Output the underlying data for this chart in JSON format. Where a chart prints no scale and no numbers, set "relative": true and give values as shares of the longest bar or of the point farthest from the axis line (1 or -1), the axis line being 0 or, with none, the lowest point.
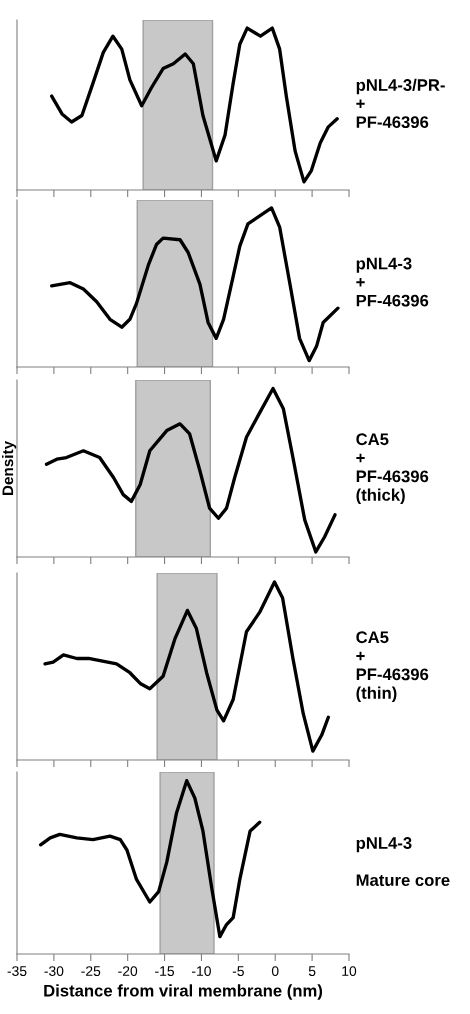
{
  "chart_data": [
    {
      "type": "line",
      "relative": true,
      "xlim": [
        -35,
        10
      ],
      "xticks": [
        -35,
        -30,
        -25,
        -20,
        -15,
        -10,
        -5,
        0,
        5,
        10
      ],
      "tick_labels": false,
      "x": [
        -30.3,
        -28.9,
        -27.6,
        -26.2,
        -24.7,
        -23.3,
        -22.0,
        -20.8,
        -19.7,
        -18.1,
        -16.8,
        -15.2,
        -13.8,
        -12.2,
        -11.1,
        -9.8,
        -8.0,
        -6.8,
        -5.7,
        -4.8,
        -3.8,
        -2.0,
        -0.4,
        0.6,
        1.5,
        2.7,
        3.9,
        4.9,
        6.1,
        7.2,
        8.4
      ],
      "series": [
        {
          "color": "#000000",
          "values": [
            0.58,
            0.47,
            0.42,
            0.46,
            0.66,
            0.85,
            0.95,
            0.87,
            0.68,
            0.52,
            0.63,
            0.75,
            0.78,
            0.84,
            0.78,
            0.46,
            0.18,
            0.34,
            0.66,
            0.9,
            1.0,
            0.95,
            1.0,
            0.87,
            0.58,
            0.24,
            0.05,
            0.12,
            0.29,
            0.39,
            0.44
          ]
        }
      ],
      "bands": [
        {
          "axis": "x",
          "from": -17.9,
          "to": -8.5,
          "color": "#c8c8c8"
        }
      ],
      "annotations": [
        "pNL4-3/PR-\n+\nPF-46396"
      ]
    },
    {
      "type": "line",
      "relative": true,
      "xlim": [
        -35,
        10
      ],
      "xticks": [
        -35,
        -30,
        -25,
        -20,
        -15,
        -10,
        -5,
        0,
        5,
        10
      ],
      "tick_labels": false,
      "x": [
        -30.3,
        -27.8,
        -26.0,
        -24.2,
        -22.4,
        -20.8,
        -19.7,
        -18.8,
        -17.2,
        -16.1,
        -15.2,
        -12.9,
        -11.8,
        -10.2,
        -9.1,
        -8.0,
        -7.0,
        -5.7,
        -4.8,
        -3.7,
        -2.1,
        -0.5,
        0.6,
        2.0,
        3.3,
        4.6,
        5.6,
        6.5,
        8.5
      ],
      "series": [
        {
          "color": "#000000",
          "values": [
            0.51,
            0.53,
            0.49,
            0.41,
            0.3,
            0.25,
            0.3,
            0.4,
            0.64,
            0.77,
            0.81,
            0.8,
            0.72,
            0.52,
            0.28,
            0.18,
            0.3,
            0.57,
            0.76,
            0.9,
            0.95,
            1.0,
            0.88,
            0.52,
            0.18,
            0.04,
            0.13,
            0.28,
            0.37
          ]
        }
      ],
      "bands": [
        {
          "axis": "x",
          "from": -18.7,
          "to": -8.5,
          "color": "#c8c8c8"
        }
      ],
      "annotations": [
        "pNL4-3\n+\nPF-46396"
      ]
    },
    {
      "type": "line",
      "relative": true,
      "ylabel": "Density",
      "xlim": [
        -35,
        10
      ],
      "xticks": [
        -35,
        -30,
        -25,
        -20,
        -15,
        -10,
        -5,
        0,
        5,
        10
      ],
      "tick_labels": false,
      "x": [
        -31.0,
        -29.6,
        -28.3,
        -26.0,
        -23.8,
        -21.9,
        -20.6,
        -19.5,
        -18.3,
        -17.0,
        -14.7,
        -12.9,
        -11.6,
        -10.2,
        -8.9,
        -7.7,
        -6.6,
        -5.5,
        -3.9,
        -2.3,
        -0.3,
        1.1,
        2.4,
        4.0,
        5.5,
        6.7,
        8.1
      ],
      "series": [
        {
          "color": "#000000",
          "values": [
            0.55,
            0.58,
            0.59,
            0.63,
            0.59,
            0.47,
            0.37,
            0.33,
            0.43,
            0.63,
            0.75,
            0.79,
            0.73,
            0.51,
            0.29,
            0.23,
            0.29,
            0.47,
            0.71,
            0.84,
            1.0,
            0.88,
            0.59,
            0.22,
            0.03,
            0.12,
            0.25
          ]
        }
      ],
      "bands": [
        {
          "axis": "x",
          "from": -18.9,
          "to": -8.8,
          "color": "#c8c8c8"
        }
      ],
      "annotations": [
        "CA5\n+\nPF-46396\n(thick)"
      ]
    },
    {
      "type": "line",
      "relative": true,
      "xlim": [
        -35,
        10
      ],
      "xticks": [
        -35,
        -30,
        -25,
        -20,
        -15,
        -10,
        -5,
        0,
        5,
        10
      ],
      "tick_labels": false,
      "x": [
        -31.2,
        -30.1,
        -28.7,
        -26.9,
        -25.3,
        -21.5,
        -19.7,
        -18.3,
        -17.0,
        -15.2,
        -13.6,
        -11.9,
        -10.7,
        -9.3,
        -7.9,
        -7.0,
        -5.7,
        -3.9,
        -2.1,
        -0.1,
        1.0,
        2.4,
        3.8,
        5.1,
        6.3,
        7.2
      ],
      "series": [
        {
          "color": "#000000",
          "values": [
            0.54,
            0.55,
            0.59,
            0.57,
            0.57,
            0.54,
            0.49,
            0.43,
            0.4,
            0.47,
            0.68,
            0.84,
            0.74,
            0.49,
            0.28,
            0.22,
            0.34,
            0.72,
            0.83,
            1.0,
            0.91,
            0.57,
            0.26,
            0.05,
            0.14,
            0.24
          ]
        }
      ],
      "bands": [
        {
          "axis": "x",
          "from": -16.0,
          "to": -7.9,
          "color": "#c8c8c8"
        }
      ],
      "annotations": [
        "CA5\n+\nPF-46396\n(thin)"
      ]
    },
    {
      "type": "line",
      "relative": true,
      "xlabel": "Distance from viral membrane (nm)",
      "xlim": [
        -35,
        10
      ],
      "xticks": [
        -35,
        -30,
        -25,
        -20,
        -15,
        -10,
        -5,
        0,
        5,
        10
      ],
      "tick_labels": "x",
      "x": [
        -31.8,
        -30.5,
        -29.2,
        -26.9,
        -24.7,
        -22.4,
        -21.0,
        -20.1,
        -18.8,
        -17.0,
        -15.8,
        -14.7,
        -13.4,
        -12.0,
        -10.9,
        -9.8,
        -8.6,
        -7.5,
        -6.6,
        -5.7,
        -4.8,
        -3.4,
        -2.1
      ],
      "series": [
        {
          "color": "#000000",
          "values": [
            0.63,
            0.67,
            0.69,
            0.67,
            0.66,
            0.68,
            0.66,
            0.6,
            0.43,
            0.3,
            0.36,
            0.53,
            0.81,
            1.0,
            0.9,
            0.71,
            0.38,
            0.1,
            0.17,
            0.21,
            0.43,
            0.71,
            0.76
          ]
        }
      ],
      "bands": [
        {
          "axis": "x",
          "from": -15.6,
          "to": -8.3,
          "color": "#c8c8c8"
        }
      ],
      "annotations": [
        "pNL4-3\n\nMature core"
      ]
    }
  ]
}
